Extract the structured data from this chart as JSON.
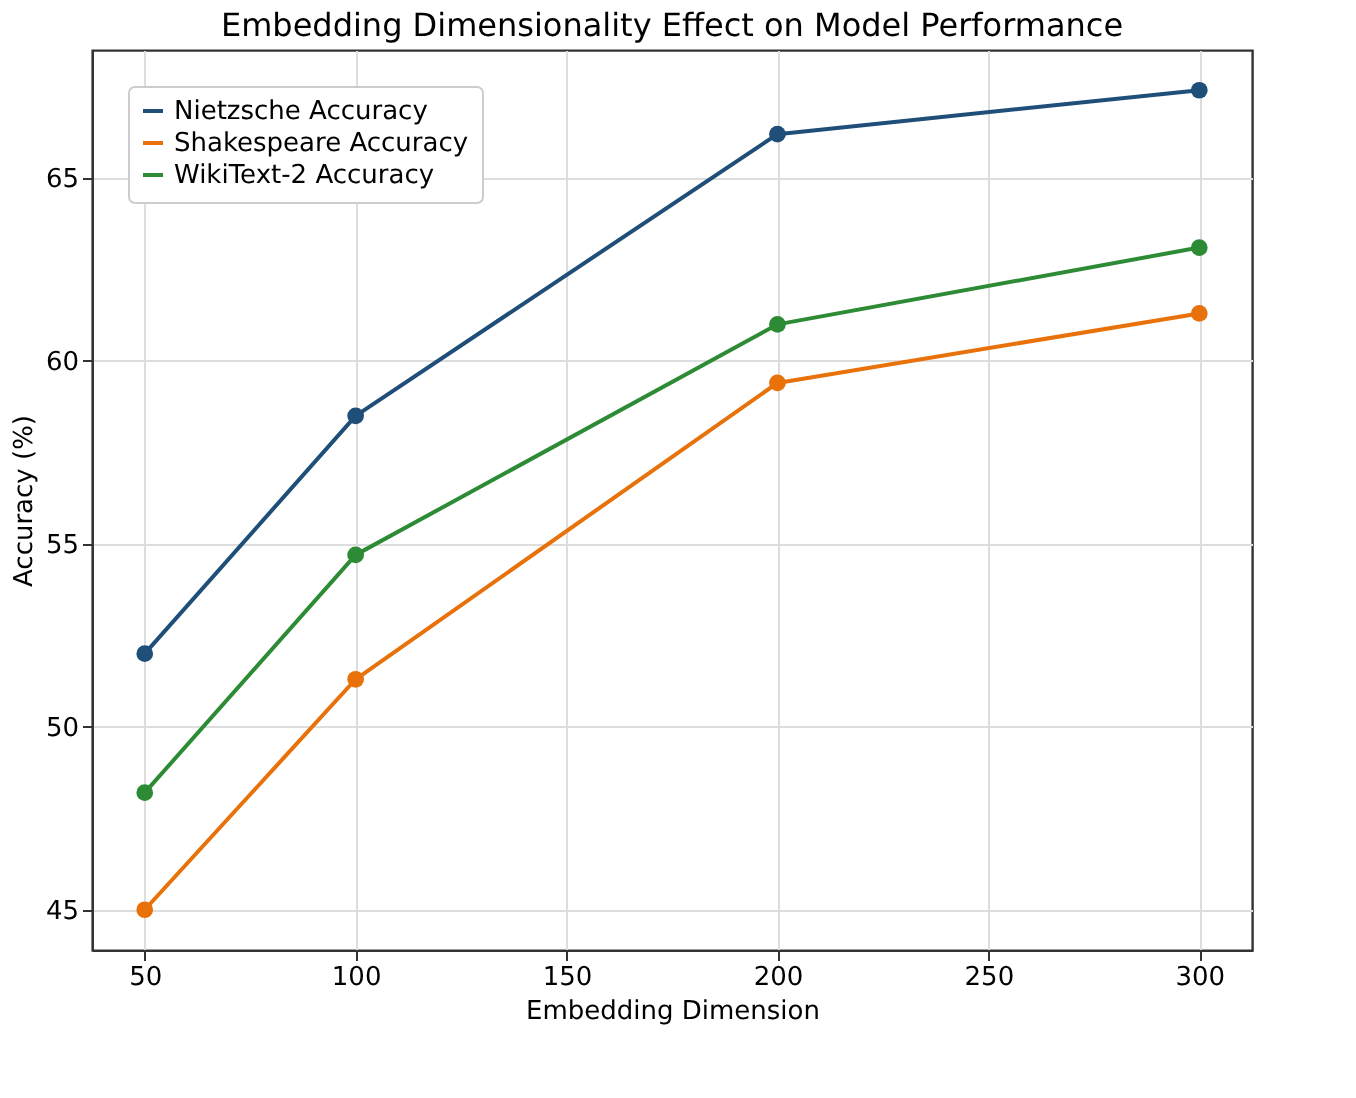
{
  "chart_data": {
    "type": "line",
    "title": "Embedding Dimensionality Effect on Model Performance",
    "xlabel": "Embedding Dimension",
    "ylabel": "Accuracy (%)",
    "x": [
      50,
      100,
      200,
      300
    ],
    "series": [
      {
        "name": "Nietzsche Accuracy",
        "color": "#1f4e79",
        "values": [
          52.0,
          58.5,
          66.2,
          67.4
        ]
      },
      {
        "name": "Shakespeare Accuracy",
        "color": "#e8710a",
        "values": [
          45.0,
          51.3,
          59.4,
          61.3
        ]
      },
      {
        "name": "WikiText-2 Accuracy",
        "color": "#2e8b35",
        "values": [
          48.2,
          54.7,
          61.0,
          63.1
        ]
      }
    ],
    "xlim": [
      37.5,
      312.5
    ],
    "xticks": [
      50,
      100,
      150,
      200,
      250,
      300
    ],
    "ylim": [
      43.9,
      68.5
    ],
    "yticks": [
      45,
      50,
      55,
      60,
      65
    ],
    "grid": true,
    "legend": "top left",
    "marker": "circle",
    "line_style": "solid"
  }
}
